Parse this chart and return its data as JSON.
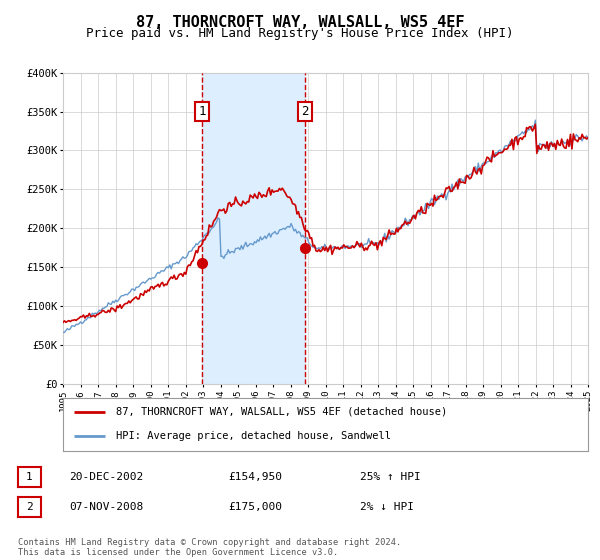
{
  "title": "87, THORNCROFT WAY, WALSALL, WS5 4EF",
  "subtitle": "Price paid vs. HM Land Registry's House Price Index (HPI)",
  "legend_line1": "87, THORNCROFT WAY, WALSALL, WS5 4EF (detached house)",
  "legend_line2": "HPI: Average price, detached house, Sandwell",
  "annotation1_label": "1",
  "annotation1_date": "20-DEC-2002",
  "annotation1_price": "£154,950",
  "annotation1_hpi": "25% ↑ HPI",
  "annotation2_label": "2",
  "annotation2_date": "07-NOV-2008",
  "annotation2_price": "£175,000",
  "annotation2_hpi": "2% ↓ HPI",
  "footer": "Contains HM Land Registry data © Crown copyright and database right 2024.\nThis data is licensed under the Open Government Licence v3.0.",
  "year_start": 1995,
  "year_end": 2025,
  "ylim": [
    0,
    400000
  ],
  "yticks": [
    0,
    50000,
    100000,
    150000,
    200000,
    250000,
    300000,
    350000,
    400000
  ],
  "red_line_color": "#cc0000",
  "blue_line_color": "#6699cc",
  "shade_color": "#ddeeff",
  "grid_color": "#cccccc",
  "bg_color": "#ffffff",
  "annotation_box_color": "#cc0000",
  "vline_color": "#cc0000",
  "title_fontsize": 11,
  "subtitle_fontsize": 9,
  "axis_fontsize": 7.5
}
